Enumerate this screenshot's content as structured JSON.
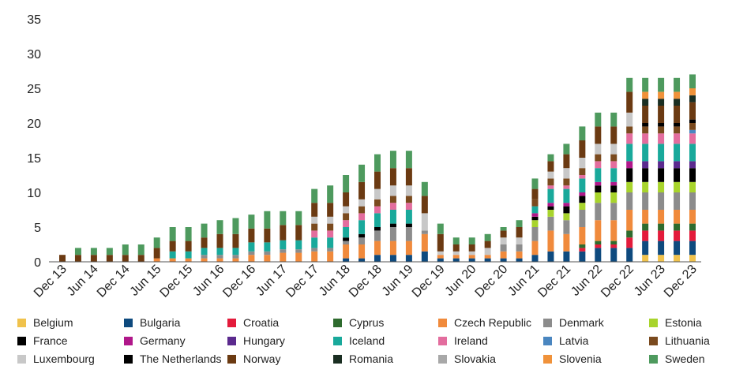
{
  "chart_data": {
    "type": "stacked-bar",
    "title": "",
    "xlabel": "",
    "ylabel": "",
    "ylim": [
      0,
      35
    ],
    "yticks": [
      0,
      5,
      10,
      15,
      20,
      25,
      30,
      35
    ],
    "grid": false,
    "legend_position": "bottom",
    "x_tick_labels": [
      "Dec 13",
      "Jun 14",
      "Dec 14",
      "Jun 15",
      "Dec 15",
      "Jun 16",
      "Dec 16",
      "Jun 17",
      "Dec 17",
      "Jun 18",
      "Dec 18",
      "Jun 19",
      "Dec 19",
      "Jun 20",
      "Dec 20",
      "Jun 21",
      "Dec 21",
      "Jun 22",
      "Dec 22",
      "Jun 23",
      "Dec 23"
    ],
    "series": [
      {
        "name": "Belgium",
        "color": "#f0c24c"
      },
      {
        "name": "Bulgaria",
        "color": "#0e4a7e"
      },
      {
        "name": "Croatia",
        "color": "#e31b3b"
      },
      {
        "name": "Cyprus",
        "color": "#2e6b2e"
      },
      {
        "name": "Czech Republic",
        "color": "#f08a3c"
      },
      {
        "name": "Denmark",
        "color": "#8c8c8c"
      },
      {
        "name": "Estonia",
        "color": "#a8d42c"
      },
      {
        "name": "France",
        "color": "#000000"
      },
      {
        "name": "Germany",
        "color": "#b0178a"
      },
      {
        "name": "Hungary",
        "color": "#5b2a8e"
      },
      {
        "name": "Iceland",
        "color": "#19a99b"
      },
      {
        "name": "Ireland",
        "color": "#e36d9e"
      },
      {
        "name": "Latvia",
        "color": "#4a86c0"
      },
      {
        "name": "Lithuania",
        "color": "#7a4a1e"
      },
      {
        "name": "Luxembourg",
        "color": "#c8c8c8"
      },
      {
        "name": "The Netherlands",
        "color": "#000000"
      },
      {
        "name": "Norway",
        "color": "#6b3a12"
      },
      {
        "name": "Romania",
        "color": "#1a2e22"
      },
      {
        "name": "Slovakia",
        "color": "#a8a8a8"
      },
      {
        "name": "Slovenia",
        "color": "#f0923a"
      },
      {
        "name": "Sweden",
        "color": "#4e9a5e"
      }
    ],
    "bars": [
      {
        "Norway": 1
      },
      {
        "Norway": 1,
        "Sweden": 1
      },
      {
        "Norway": 1,
        "Sweden": 1
      },
      {
        "Norway": 1,
        "Sweden": 1
      },
      {
        "Norway": 1,
        "Sweden": 1.5
      },
      {
        "Norway": 1,
        "Sweden": 1.5
      },
      {
        "Czech Republic": 0.5,
        "Norway": 1.5,
        "Sweden": 1.5
      },
      {
        "Czech Republic": 0.5,
        "Iceland": 1,
        "Norway": 1.5,
        "Sweden": 2
      },
      {
        "Czech Republic": 0.5,
        "Iceland": 1,
        "Norway": 1.5,
        "Sweden": 2
      },
      {
        "Czech Republic": 0.5,
        "Iceland": 1,
        "Denmark": 0.5,
        "Norway": 1.5,
        "Sweden": 2
      },
      {
        "Czech Republic": 0.5,
        "Iceland": 1,
        "Denmark": 0.5,
        "Norway": 2,
        "Sweden": 2
      },
      {
        "Czech Republic": 0.5,
        "Iceland": 1,
        "Denmark": 0.5,
        "Norway": 2,
        "Sweden": 2.3
      },
      {
        "Czech Republic": 1,
        "Iceland": 1.3,
        "Denmark": 0.5,
        "Norway": 2,
        "Sweden": 2
      },
      {
        "Czech Republic": 1,
        "Iceland": 1.3,
        "Denmark": 0.5,
        "Norway": 2,
        "Sweden": 2.5
      },
      {
        "Czech Republic": 1.3,
        "Iceland": 1.3,
        "Denmark": 0.5,
        "Norway": 2.2,
        "Sweden": 2
      },
      {
        "Czech Republic": 1.3,
        "Iceland": 1.3,
        "Denmark": 0.5,
        "Norway": 2.2,
        "Sweden": 2
      },
      {
        "Czech Republic": 1.5,
        "Denmark": 0.5,
        "Iceland": 1.5,
        "Ireland": 1,
        "Lithuania": 1,
        "Norway": 2,
        "Luxembourg": 1,
        "Sweden": 2
      },
      {
        "Czech Republic": 1.5,
        "Denmark": 0.5,
        "Iceland": 1.5,
        "Ireland": 1,
        "Lithuania": 1,
        "Norway": 2,
        "Luxembourg": 1,
        "Sweden": 2.5
      },
      {
        "Bulgaria": 0.5,
        "Czech Republic": 2,
        "Denmark": 0.5,
        "France": 0.5,
        "Iceland": 1.5,
        "Ireland": 1,
        "Lithuania": 1,
        "Norway": 2,
        "Luxembourg": 1,
        "Sweden": 2.5
      },
      {
        "Bulgaria": 0.5,
        "Czech Republic": 2,
        "Denmark": 1,
        "France": 0.5,
        "Iceland": 2,
        "Ireland": 1,
        "Lithuania": 1,
        "Norway": 2.5,
        "Luxembourg": 1,
        "Sweden": 2.5
      },
      {
        "Bulgaria": 1,
        "Czech Republic": 2,
        "Denmark": 1.5,
        "France": 0.5,
        "Iceland": 2,
        "Ireland": 1,
        "Lithuania": 1,
        "Norway": 2.5,
        "Luxembourg": 1.5,
        "Sweden": 2.5
      },
      {
        "Bulgaria": 1,
        "Czech Republic": 2,
        "Denmark": 2,
        "France": 0.5,
        "Iceland": 2,
        "Ireland": 1,
        "Lithuania": 1,
        "Norway": 2.5,
        "Luxembourg": 1.5,
        "Sweden": 2.5
      },
      {
        "Bulgaria": 1,
        "Czech Republic": 2,
        "Denmark": 2,
        "France": 0.5,
        "Iceland": 2,
        "Ireland": 1,
        "Lithuania": 1,
        "Norway": 2.5,
        "Luxembourg": 1.5,
        "Sweden": 2.5
      },
      {
        "Bulgaria": 1.5,
        "Czech Republic": 2.5,
        "Denmark": 0.5,
        "Norway": 2.5,
        "Luxembourg": 2.5,
        "Sweden": 2
      },
      {
        "Bulgaria": 0.5,
        "Czech Republic": 0.5,
        "Norway": 2.5,
        "Luxembourg": 0.5,
        "Sweden": 1.5
      },
      {
        "Bulgaria": 0.5,
        "Czech Republic": 0.5,
        "Norway": 1,
        "Luxembourg": 0.5,
        "Sweden": 1
      },
      {
        "Bulgaria": 0.5,
        "Czech Republic": 0.5,
        "Norway": 1,
        "Luxembourg": 0.5,
        "Sweden": 1
      },
      {
        "Bulgaria": 0.5,
        "Czech Republic": 0.5,
        "Norway": 1,
        "Luxembourg": 1,
        "Sweden": 1
      },
      {
        "Bulgaria": 0.5,
        "Czech Republic": 1,
        "Denmark": 1,
        "Norway": 1,
        "Luxembourg": 1,
        "Sweden": 0.5
      },
      {
        "Bulgaria": 0.5,
        "Czech Republic": 1,
        "Denmark": 1,
        "Norway": 1.5,
        "Luxembourg": 1,
        "Sweden": 1
      },
      {
        "Bulgaria": 1,
        "Czech Republic": 2,
        "Denmark": 2,
        "Estonia": 1,
        "Germany": 0.5,
        "France": 0.5,
        "Iceland": 1,
        "Lithuania": 1,
        "Norway": 1.5,
        "Sweden": 1.5
      },
      {
        "Bulgaria": 1.5,
        "Czech Republic": 3,
        "Denmark": 2,
        "Estonia": 1,
        "Germany": 0.5,
        "France": 0.5,
        "Iceland": 2,
        "Ireland": 0.5,
        "Lithuania": 1,
        "Norway": 1.5,
        "Luxembourg": 1,
        "Sweden": 1
      },
      {
        "Bulgaria": 1.5,
        "Czech Republic": 2.5,
        "Denmark": 2,
        "Estonia": 1,
        "Germany": 0.5,
        "France": 1,
        "Iceland": 2,
        "Ireland": 0.5,
        "Lithuania": 1,
        "Norway": 2,
        "Luxembourg": 1.5,
        "Sweden": 1.5
      },
      {
        "Bulgaria": 1.5,
        "Croatia": 0.5,
        "Cyprus": 0.5,
        "Czech Republic": 2.5,
        "Denmark": 2.5,
        "Estonia": 1,
        "Germany": 0.5,
        "France": 1,
        "Iceland": 2,
        "Ireland": 0.5,
        "Lithuania": 1,
        "Norway": 2.5,
        "Luxembourg": 1.5,
        "Sweden": 2
      },
      {
        "Bulgaria": 2,
        "Croatia": 0.5,
        "Cyprus": 0.5,
        "Czech Republic": 3,
        "Denmark": 2.5,
        "Estonia": 1.5,
        "Germany": 0.5,
        "France": 1,
        "Iceland": 2,
        "Ireland": 1,
        "Lithuania": 1,
        "Norway": 2.5,
        "Luxembourg": 1.5,
        "Sweden": 2
      },
      {
        "Bulgaria": 2,
        "Croatia": 0.5,
        "Cyprus": 0.5,
        "Czech Republic": 3,
        "Denmark": 2.5,
        "Estonia": 1.5,
        "Germany": 0.5,
        "France": 1,
        "Iceland": 2,
        "Ireland": 1,
        "Lithuania": 1,
        "Norway": 2.5,
        "Luxembourg": 1.5,
        "Sweden": 2
      },
      {
        "Bulgaria": 2,
        "Croatia": 1.5,
        "Cyprus": 1,
        "Czech Republic": 3,
        "Denmark": 2.5,
        "Estonia": 1.5,
        "Germany": 1,
        "France": 2,
        "Iceland": 2.5,
        "Ireland": 1.5,
        "Lithuania": 1,
        "Norway": 3,
        "Luxembourg": 2,
        "Sweden": 2
      },
      {
        "Belgium": 1,
        "Bulgaria": 2,
        "Croatia": 1.5,
        "Cyprus": 1,
        "Czech Republic": 2,
        "Denmark": 2.5,
        "Estonia": 1.5,
        "France": 2,
        "Hungary": 1,
        "Iceland": 2.5,
        "Ireland": 1.5,
        "Lithuania": 1,
        "The Netherlands": 0.5,
        "Norway": 2.5,
        "Romania": 1,
        "Slovenia": 1,
        "Sweden": 2
      },
      {
        "Belgium": 1,
        "Bulgaria": 2,
        "Croatia": 1.5,
        "Cyprus": 1,
        "Czech Republic": 2,
        "Denmark": 2.5,
        "Estonia": 1.5,
        "France": 2,
        "Hungary": 1,
        "Iceland": 2.5,
        "Ireland": 1.5,
        "Lithuania": 1,
        "The Netherlands": 0.5,
        "Norway": 2.5,
        "Romania": 1,
        "Slovenia": 1,
        "Sweden": 2
      },
      {
        "Belgium": 1,
        "Bulgaria": 2,
        "Croatia": 1.5,
        "Cyprus": 1,
        "Czech Republic": 2,
        "Denmark": 2.5,
        "Estonia": 1.5,
        "France": 2,
        "Hungary": 1,
        "Iceland": 2.5,
        "Ireland": 1.5,
        "Lithuania": 1,
        "The Netherlands": 0.5,
        "Norway": 2.5,
        "Romania": 1,
        "Slovenia": 1,
        "Sweden": 2
      },
      {
        "Belgium": 1,
        "Bulgaria": 2,
        "Croatia": 1.5,
        "Cyprus": 1,
        "Czech Republic": 2,
        "Denmark": 2.5,
        "Estonia": 1.5,
        "France": 2,
        "Hungary": 1,
        "Iceland": 2.5,
        "Ireland": 1.5,
        "Latvia": 0.5,
        "Lithuania": 1,
        "The Netherlands": 0.5,
        "Norway": 2.5,
        "Romania": 1,
        "Slovenia": 1,
        "Sweden": 2
      }
    ]
  },
  "legend": {
    "entries": [
      {
        "label": "Belgium",
        "color": "#f0c24c"
      },
      {
        "label": "Bulgaria",
        "color": "#0e4a7e"
      },
      {
        "label": "Croatia",
        "color": "#e31b3b"
      },
      {
        "label": "Cyprus",
        "color": "#2e6b2e"
      },
      {
        "label": "Czech Republic",
        "color": "#f08a3c"
      },
      {
        "label": "Denmark",
        "color": "#8c8c8c"
      },
      {
        "label": "Estonia",
        "color": "#a8d42c"
      },
      {
        "label": "France",
        "color": "#000000"
      },
      {
        "label": "Germany",
        "color": "#b0178a"
      },
      {
        "label": "Hungary",
        "color": "#5b2a8e"
      },
      {
        "label": "Iceland",
        "color": "#19a99b"
      },
      {
        "label": "Ireland",
        "color": "#e36d9e"
      },
      {
        "label": "Latvia",
        "color": "#4a86c0"
      },
      {
        "label": "Lithuania",
        "color": "#7a4a1e"
      },
      {
        "label": "Luxembourg",
        "color": "#c8c8c8"
      },
      {
        "label": "The Netherlands",
        "color": "#000000"
      },
      {
        "label": "Norway",
        "color": "#6b3a12"
      },
      {
        "label": "Romania",
        "color": "#1a2e22"
      },
      {
        "label": "Slovakia",
        "color": "#a8a8a8"
      },
      {
        "label": "Slovenia",
        "color": "#f0923a"
      },
      {
        "label": "Sweden",
        "color": "#4e9a5e"
      }
    ]
  }
}
